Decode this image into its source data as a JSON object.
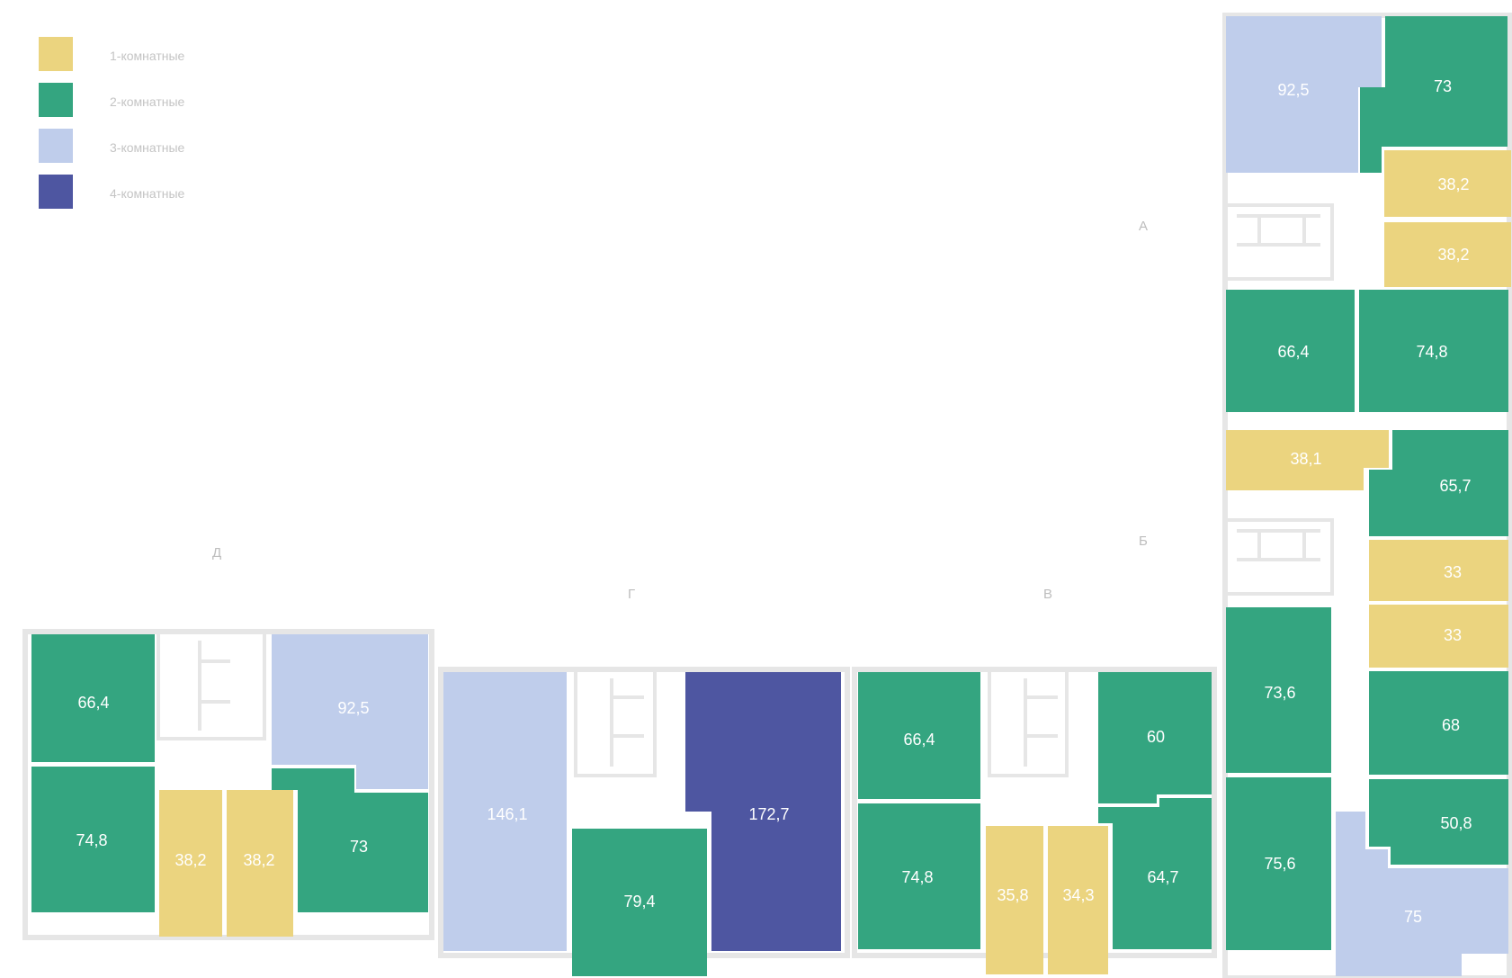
{
  "colors": {
    "room1": "#ebd47f",
    "room2": "#34a580",
    "room3": "#bfcdeb",
    "room4": "#4e56a1",
    "wall": "#e6e6e6",
    "legend_text": "#c4c4c4",
    "section_label": "#bdbdbd"
  },
  "legend": [
    {
      "label": "1-комнатные",
      "type": "room1"
    },
    {
      "label": "2-комнатные",
      "type": "room2"
    },
    {
      "label": "3-комнатные",
      "type": "room3"
    },
    {
      "label": "4-комнатные",
      "type": "room4"
    }
  ],
  "sections": {
    "a": "А",
    "b": "Б",
    "v": "В",
    "g": "Г",
    "d": "Д"
  },
  "apartments": {
    "a_1": {
      "area": "92,5",
      "type": "room3"
    },
    "a_2": {
      "area": "73",
      "type": "room2"
    },
    "a_3": {
      "area": "38,2",
      "type": "room1"
    },
    "a_4": {
      "area": "38,2",
      "type": "room1"
    },
    "a_5": {
      "area": "66,4",
      "type": "room2"
    },
    "a_6": {
      "area": "74,8",
      "type": "room2"
    },
    "b_1": {
      "area": "38,1",
      "type": "room1"
    },
    "b_2": {
      "area": "65,7",
      "type": "room2"
    },
    "b_3": {
      "area": "33",
      "type": "room1"
    },
    "b_4": {
      "area": "33",
      "type": "room1"
    },
    "b_5": {
      "area": "73,6",
      "type": "room2"
    },
    "b_6": {
      "area": "68",
      "type": "room2"
    },
    "b_7": {
      "area": "75,6",
      "type": "room2"
    },
    "b_8": {
      "area": "50,8",
      "type": "room2"
    },
    "b_9": {
      "area": "75",
      "type": "room3"
    },
    "v_1": {
      "area": "66,4",
      "type": "room2"
    },
    "v_2": {
      "area": "60",
      "type": "room2"
    },
    "v_3": {
      "area": "74,8",
      "type": "room2"
    },
    "v_4": {
      "area": "35,8",
      "type": "room1"
    },
    "v_5": {
      "area": "34,3",
      "type": "room1"
    },
    "v_6": {
      "area": "64,7",
      "type": "room2"
    },
    "g_1": {
      "area": "146,1",
      "type": "room3"
    },
    "g_2": {
      "area": "172,7",
      "type": "room4"
    },
    "g_3": {
      "area": "79,4",
      "type": "room2"
    },
    "d_1": {
      "area": "66,4",
      "type": "room2"
    },
    "d_2": {
      "area": "92,5",
      "type": "room3"
    },
    "d_3": {
      "area": "74,8",
      "type": "room2"
    },
    "d_4": {
      "area": "38,2",
      "type": "room1"
    },
    "d_5": {
      "area": "38,2",
      "type": "room1"
    },
    "d_6": {
      "area": "73",
      "type": "room2"
    }
  }
}
